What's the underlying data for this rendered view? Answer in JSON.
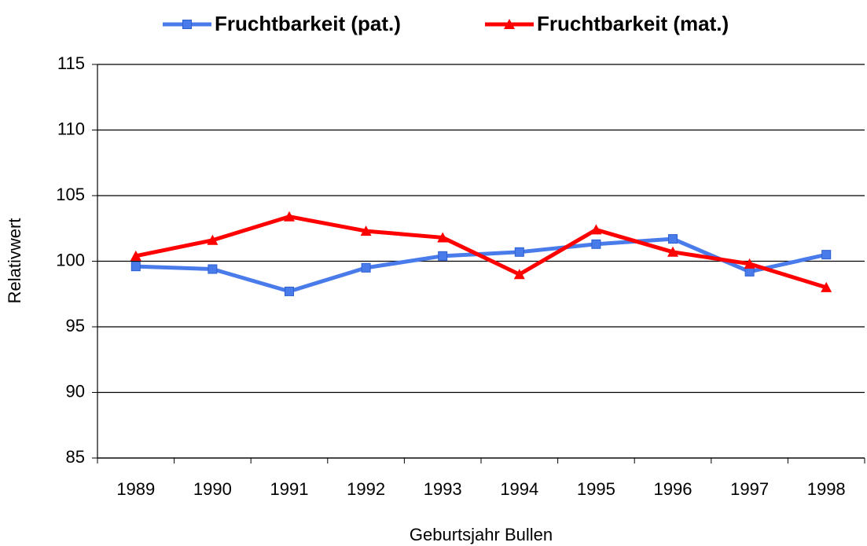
{
  "chart_data": {
    "type": "line",
    "x_label": "Geburtsjahr Bullen",
    "y_label": "Relativwert",
    "categories": [
      "1989",
      "1990",
      "1991",
      "1992",
      "1993",
      "1994",
      "1995",
      "1996",
      "1997",
      "1998"
    ],
    "series": [
      {
        "name": "Fruchtbarkeit (pat.)",
        "color": "#4a7bea",
        "marker": "square",
        "values": [
          99.6,
          99.4,
          97.7,
          99.5,
          100.4,
          100.7,
          101.3,
          101.7,
          99.2,
          100.5
        ]
      },
      {
        "name": "Fruchtbarkeit (mat.)",
        "color": "#ff0000",
        "marker": "triangle",
        "values": [
          100.4,
          101.6,
          103.4,
          102.3,
          101.8,
          99.0,
          102.4,
          100.7,
          99.8,
          98.0
        ]
      }
    ],
    "ylim": [
      85,
      115
    ],
    "yticks": [
      85,
      90,
      95,
      100,
      105,
      110,
      115
    ],
    "grid": true
  }
}
